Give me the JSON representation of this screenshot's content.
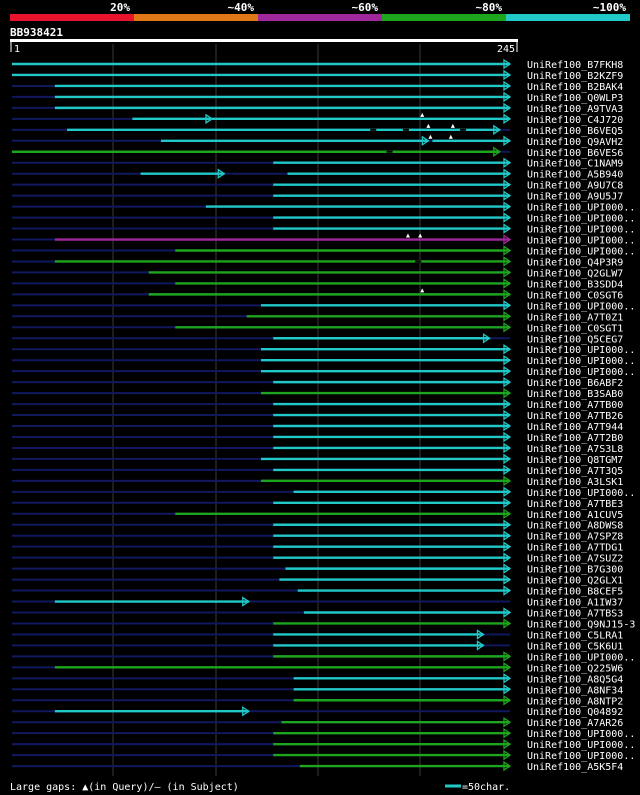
{
  "chart_data": {
    "type": "alignment-map",
    "title": "BB938421",
    "query_length": 245,
    "axis_start_label": "1",
    "axis_end_label": "245",
    "identity_scale": [
      {
        "label": "20%",
        "color": "#e8142e"
      },
      {
        "label": "~40%",
        "color": "#e07818"
      },
      {
        "label": "~60%",
        "color": "#a0289c"
      },
      {
        "label": "~80%",
        "color": "#1ea51e"
      },
      {
        "label": "~100%",
        "color": "#21c8c8"
      }
    ],
    "colors": {
      "high": "#21c8c8",
      "mid": "#1ea51e",
      "low": "#a0289c",
      "unaligned": "#101860",
      "grid": "#3a3a3a",
      "gap_marker": "#ffffff"
    },
    "hits": [
      {
        "name": "UniRef100_B7FKH8",
        "start": 1,
        "end": 245,
        "identity": "high"
      },
      {
        "name": "UniRef100_B2KZF9",
        "start": 1,
        "end": 245,
        "identity": "high"
      },
      {
        "name": "UniRef100_B2BAK4",
        "start": 22,
        "end": 245,
        "identity": "high"
      },
      {
        "name": "UniRef100_Q0WLP3",
        "start": 22,
        "end": 245,
        "identity": "high"
      },
      {
        "name": "UniRef100_A9TVA3",
        "start": 22,
        "end": 245,
        "identity": "high"
      },
      {
        "name": "UniRef100_C4J720",
        "start": 60,
        "end": 99,
        "identity": "high",
        "extra": [
          {
            "start": 99,
            "end": 245
          }
        ],
        "query_gaps": [
          202
        ]
      },
      {
        "name": "UniRef100_B6VEQ5",
        "start": 28,
        "end": 240,
        "identity": "high",
        "query_gaps": [
          205,
          217
        ],
        "subject_gaps": [
          178,
          194,
          222
        ]
      },
      {
        "name": "UniRef100_Q9AVH2",
        "start": 74,
        "end": 205,
        "identity": "high",
        "extra": [
          {
            "start": 207,
            "end": 245
          }
        ],
        "query_gaps": [
          206,
          216
        ]
      },
      {
        "name": "UniRef100_B6VES6",
        "start": 1,
        "end": 240,
        "identity": "mid",
        "subject_gaps": [
          186
        ]
      },
      {
        "name": "UniRef100_C1NAM9",
        "start": 129,
        "end": 245,
        "identity": "high"
      },
      {
        "name": "UniRef100_A5B940",
        "start": 64,
        "end": 105,
        "identity": "high",
        "extra": [
          {
            "start": 136,
            "end": 245
          }
        ]
      },
      {
        "name": "UniRef100_A9U7C8",
        "start": 129,
        "end": 245,
        "identity": "high"
      },
      {
        "name": "UniRef100_A9U5J7",
        "start": 129,
        "end": 245,
        "identity": "high"
      },
      {
        "name": "UniRef100_UPI000..",
        "start": 96,
        "end": 245,
        "identity": "high"
      },
      {
        "name": "UniRef100_UPI000..",
        "start": 129,
        "end": 245,
        "identity": "high"
      },
      {
        "name": "UniRef100_UPI000..",
        "start": 129,
        "end": 245,
        "identity": "high"
      },
      {
        "name": "UniRef100_UPI000..",
        "start": 22,
        "end": 245,
        "identity": "low",
        "query_gaps": [
          195,
          201
        ]
      },
      {
        "name": "UniRef100_UPI000..",
        "start": 81,
        "end": 245,
        "identity": "mid"
      },
      {
        "name": "UniRef100_Q4P3R9",
        "start": 22,
        "end": 245,
        "identity": "mid",
        "subject_gaps": [
          200
        ]
      },
      {
        "name": "UniRef100_Q2GLW7",
        "start": 68,
        "end": 245,
        "identity": "mid"
      },
      {
        "name": "UniRef100_B3SDD4",
        "start": 81,
        "end": 245,
        "identity": "mid"
      },
      {
        "name": "UniRef100_C0SGT6",
        "start": 68,
        "end": 245,
        "identity": "mid",
        "query_gaps": [
          202
        ]
      },
      {
        "name": "UniRef100_UPI000..",
        "start": 123,
        "end": 245,
        "identity": "high"
      },
      {
        "name": "UniRef100_A7T0Z1",
        "start": 116,
        "end": 245,
        "identity": "mid"
      },
      {
        "name": "UniRef100_C0SGT1",
        "start": 81,
        "end": 245,
        "identity": "mid"
      },
      {
        "name": "UniRef100_Q5CEG7",
        "start": 129,
        "end": 235,
        "identity": "high"
      },
      {
        "name": "UniRef100_UPI000..",
        "start": 123,
        "end": 245,
        "identity": "high"
      },
      {
        "name": "UniRef100_UPI000..",
        "start": 123,
        "end": 245,
        "identity": "high"
      },
      {
        "name": "UniRef100_UPI000..",
        "start": 123,
        "end": 245,
        "identity": "high"
      },
      {
        "name": "UniRef100_B6ABF2",
        "start": 129,
        "end": 245,
        "identity": "high"
      },
      {
        "name": "UniRef100_B3SAB0",
        "start": 123,
        "end": 245,
        "identity": "mid"
      },
      {
        "name": "UniRef100_A7TB00",
        "start": 129,
        "end": 245,
        "identity": "high"
      },
      {
        "name": "UniRef100_A7TB26",
        "start": 129,
        "end": 245,
        "identity": "high"
      },
      {
        "name": "UniRef100_A7T944",
        "start": 129,
        "end": 245,
        "identity": "high"
      },
      {
        "name": "UniRef100_A7T2B0",
        "start": 129,
        "end": 245,
        "identity": "high"
      },
      {
        "name": "UniRef100_A7S3L8",
        "start": 129,
        "end": 245,
        "identity": "high"
      },
      {
        "name": "UniRef100_Q8TGM7",
        "start": 123,
        "end": 245,
        "identity": "high"
      },
      {
        "name": "UniRef100_A7T3Q5",
        "start": 129,
        "end": 245,
        "identity": "high"
      },
      {
        "name": "UniRef100_A3LSK1",
        "start": 123,
        "end": 245,
        "identity": "mid"
      },
      {
        "name": "UniRef100_UPI000..",
        "start": 139,
        "end": 245,
        "identity": "high"
      },
      {
        "name": "UniRef100_A7TBE3",
        "start": 129,
        "end": 245,
        "identity": "high"
      },
      {
        "name": "UniRef100_A1CUV5",
        "start": 81,
        "end": 245,
        "identity": "mid"
      },
      {
        "name": "UniRef100_A8DWS8",
        "start": 129,
        "end": 245,
        "identity": "high"
      },
      {
        "name": "UniRef100_A7SPZ8",
        "start": 129,
        "end": 245,
        "identity": "high"
      },
      {
        "name": "UniRef100_A7TDG1",
        "start": 129,
        "end": 245,
        "identity": "high"
      },
      {
        "name": "UniRef100_A7SUZ2",
        "start": 129,
        "end": 245,
        "identity": "high"
      },
      {
        "name": "UniRef100_B7G300",
        "start": 135,
        "end": 245,
        "identity": "high"
      },
      {
        "name": "UniRef100_Q2GLX1",
        "start": 132,
        "end": 245,
        "identity": "high"
      },
      {
        "name": "UniRef100_B8CEF5",
        "start": 141,
        "end": 245,
        "identity": "high"
      },
      {
        "name": "UniRef100_A1IW37",
        "start": 22,
        "end": 117,
        "identity": "high"
      },
      {
        "name": "UniRef100_A7TBS3",
        "start": 144,
        "end": 245,
        "identity": "high"
      },
      {
        "name": "UniRef100_Q9NJ15-3",
        "start": 129,
        "end": 245,
        "identity": "mid"
      },
      {
        "name": "UniRef100_C5LRA1",
        "start": 129,
        "end": 232,
        "identity": "high"
      },
      {
        "name": "UniRef100_C5K6U1",
        "start": 129,
        "end": 232,
        "identity": "high"
      },
      {
        "name": "UniRef100_UPI000..",
        "start": 129,
        "end": 245,
        "identity": "mid"
      },
      {
        "name": "UniRef100_Q225W6",
        "start": 22,
        "end": 245,
        "identity": "mid"
      },
      {
        "name": "UniRef100_A8Q5G4",
        "start": 139,
        "end": 245,
        "identity": "high"
      },
      {
        "name": "UniRef100_A8NF34",
        "start": 139,
        "end": 245,
        "identity": "high"
      },
      {
        "name": "UniRef100_A8NTP2",
        "start": 139,
        "end": 245,
        "identity": "mid"
      },
      {
        "name": "UniRef100_Q04892",
        "start": 22,
        "end": 117,
        "identity": "high"
      },
      {
        "name": "UniRef100_A7AR26",
        "start": 133,
        "end": 245,
        "identity": "mid"
      },
      {
        "name": "UniRef100_UPI000..",
        "start": 129,
        "end": 245,
        "identity": "mid"
      },
      {
        "name": "UniRef100_UPI000..",
        "start": 129,
        "end": 245,
        "identity": "mid"
      },
      {
        "name": "UniRef100_UPI000..",
        "start": 129,
        "end": 245,
        "identity": "mid"
      },
      {
        "name": "UniRef100_A5K5F4",
        "start": 142,
        "end": 245,
        "identity": "mid"
      }
    ],
    "footer_legend_text": "Large gaps: ▲(in Query)/– (in Subject)",
    "scale_label": "=50char."
  }
}
